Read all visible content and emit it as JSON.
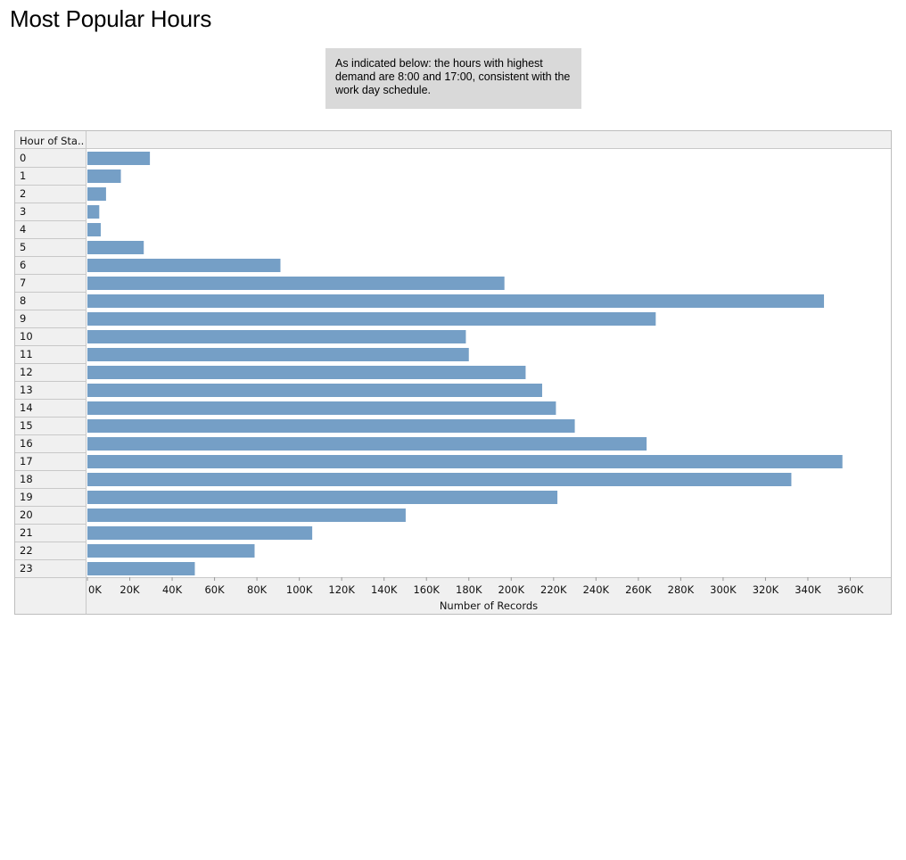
{
  "page": {
    "title": "Most Popular Hours",
    "annotation": "As indicated below: the hours with highest demand are 8:00 and 17:00, consistent with the work day schedule."
  },
  "colors": {
    "bar": "#759fc6",
    "header_bg": "#f0f0f0",
    "grid_line": "#c8c8c8",
    "annotation_bg": "#d9d9d9"
  },
  "chart_data": {
    "type": "bar",
    "orientation": "horizontal",
    "row_header": "Hour of Sta..",
    "categories": [
      "0",
      "1",
      "2",
      "3",
      "4",
      "5",
      "6",
      "7",
      "8",
      "9",
      "10",
      "11",
      "12",
      "13",
      "14",
      "15",
      "16",
      "17",
      "18",
      "19",
      "20",
      "21",
      "22",
      "23"
    ],
    "values": [
      29500,
      15800,
      8800,
      5600,
      6300,
      26600,
      91100,
      196800,
      347600,
      268200,
      178600,
      180000,
      206800,
      214600,
      221100,
      230000,
      263900,
      356300,
      332200,
      221800,
      150200,
      106100,
      78900,
      50700
    ],
    "xlabel": "Number of Records",
    "xlim": [
      0,
      368000
    ],
    "xticks": [
      0,
      20000,
      40000,
      60000,
      80000,
      100000,
      120000,
      140000,
      160000,
      180000,
      200000,
      220000,
      240000,
      260000,
      280000,
      300000,
      320000,
      340000,
      360000
    ],
    "xtick_labels": [
      "0K",
      "20K",
      "40K",
      "60K",
      "80K",
      "100K",
      "120K",
      "140K",
      "160K",
      "180K",
      "200K",
      "220K",
      "240K",
      "260K",
      "280K",
      "300K",
      "320K",
      "340K",
      "360K"
    ],
    "grid": false,
    "legend": "none"
  }
}
